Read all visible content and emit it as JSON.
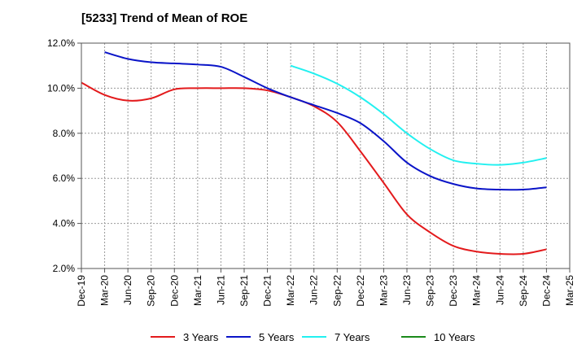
{
  "chart_data": {
    "type": "line",
    "title": "[5233]  Trend of Mean of ROE",
    "xlabel": "",
    "ylabel": "",
    "x": [
      "Dec-19",
      "Mar-20",
      "Jun-20",
      "Sep-20",
      "Dec-20",
      "Mar-21",
      "Jun-21",
      "Sep-21",
      "Dec-21",
      "Mar-22",
      "Jun-22",
      "Sep-22",
      "Dec-22",
      "Mar-23",
      "Jun-23",
      "Sep-23",
      "Dec-23",
      "Mar-24",
      "Jun-24",
      "Sep-24",
      "Dec-24",
      "Mar-25"
    ],
    "ylim": [
      2.0,
      12.0
    ],
    "yticks": [
      "2.0%",
      "4.0%",
      "6.0%",
      "8.0%",
      "10.0%",
      "12.0%"
    ],
    "grid": true,
    "legend_position": "bottom",
    "series": [
      {
        "name": "3 Years",
        "color": "#e31a1c",
        "values": [
          10.25,
          9.7,
          9.45,
          9.55,
          9.95,
          10.0,
          10.0,
          10.0,
          9.9,
          9.6,
          9.2,
          8.5,
          7.2,
          5.8,
          4.4,
          3.6,
          3.0,
          2.75,
          2.65,
          2.65,
          2.85,
          null
        ]
      },
      {
        "name": "5 Years",
        "color": "#0a14c8",
        "values": [
          null,
          11.6,
          11.3,
          11.15,
          11.1,
          11.05,
          10.95,
          10.5,
          10.0,
          9.6,
          9.25,
          8.9,
          8.45,
          7.65,
          6.7,
          6.1,
          5.75,
          5.55,
          5.5,
          5.5,
          5.6,
          null
        ]
      },
      {
        "name": "7 Years",
        "color": "#22f0f0",
        "values": [
          null,
          null,
          null,
          null,
          null,
          null,
          null,
          null,
          null,
          11.0,
          10.65,
          10.2,
          9.6,
          8.85,
          8.0,
          7.3,
          6.8,
          6.65,
          6.6,
          6.7,
          6.9,
          null
        ]
      },
      {
        "name": "10 Years",
        "color": "#1a8a1a",
        "values": [
          null,
          null,
          null,
          null,
          null,
          null,
          null,
          null,
          null,
          null,
          null,
          null,
          null,
          null,
          null,
          null,
          null,
          null,
          null,
          null,
          null,
          null
        ]
      }
    ]
  }
}
